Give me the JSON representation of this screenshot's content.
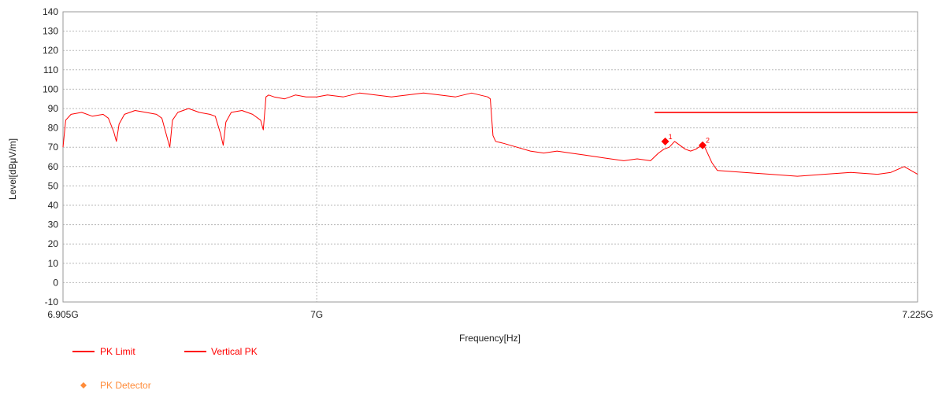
{
  "chart_data": {
    "type": "line",
    "xlabel": "Frequency[Hz]",
    "ylabel": "Level[dBμV/m]",
    "x_range_ghz": [
      6.905,
      7.225
    ],
    "x_tick_labels": [
      {
        "ghz": 6.905,
        "label": "6.905G"
      },
      {
        "ghz": 7.0,
        "label": "7G"
      },
      {
        "ghz": 7.225,
        "label": "7.225G"
      }
    ],
    "ylim": [
      -10,
      140
    ],
    "y_ticks": [
      -10,
      0,
      10,
      20,
      30,
      40,
      50,
      60,
      70,
      80,
      90,
      100,
      110,
      120,
      130,
      140
    ],
    "grid": true,
    "legend_position": "bottom-left",
    "colors": {
      "limit": "#ff0000",
      "trace": "#ff0000",
      "detector": "#ff0000",
      "detector_legend": "#ff8c3a",
      "grid": "#b8b8b8"
    },
    "series": [
      {
        "name": "PK Limit",
        "type": "line",
        "x_ghz": [
          7.1265,
          7.225
        ],
        "values": [
          88,
          88
        ]
      },
      {
        "name": "Vertical PK",
        "type": "line",
        "x_ghz": [
          6.905,
          6.906,
          6.908,
          6.912,
          6.916,
          6.92,
          6.922,
          6.924,
          6.925,
          6.926,
          6.928,
          6.932,
          6.936,
          6.94,
          6.942,
          6.944,
          6.945,
          6.946,
          6.948,
          6.952,
          6.956,
          6.96,
          6.962,
          6.964,
          6.965,
          6.966,
          6.968,
          6.972,
          6.976,
          6.979,
          6.98,
          6.981,
          6.982,
          6.984,
          6.988,
          6.992,
          6.996,
          7.0,
          7.004,
          7.01,
          7.016,
          7.022,
          7.028,
          7.034,
          7.04,
          7.046,
          7.052,
          7.058,
          7.064,
          7.065,
          7.066,
          7.067,
          7.07,
          7.075,
          7.08,
          7.085,
          7.09,
          7.095,
          7.1,
          7.105,
          7.11,
          7.115,
          7.12,
          7.125,
          7.128,
          7.13,
          7.132,
          7.134,
          7.136,
          7.138,
          7.14,
          7.142,
          7.143,
          7.145,
          7.148,
          7.15,
          7.16,
          7.17,
          7.18,
          7.19,
          7.2,
          7.21,
          7.215,
          7.22,
          7.225
        ],
        "values": [
          70,
          84,
          87,
          88,
          86,
          87,
          85,
          78,
          73,
          82,
          87,
          89,
          88,
          87,
          85,
          75,
          70,
          84,
          88,
          90,
          88,
          87,
          86,
          77,
          71,
          83,
          88,
          89,
          87,
          84,
          79,
          96,
          97,
          96,
          95,
          97,
          96,
          96,
          97,
          96,
          98,
          97,
          96,
          97,
          98,
          97,
          96,
          98,
          96,
          95,
          76,
          73,
          72,
          70,
          68,
          67,
          68,
          67,
          66,
          65,
          64,
          63,
          64,
          63,
          67,
          69,
          70,
          73,
          71,
          69,
          68,
          69,
          70,
          71,
          62,
          58,
          57,
          56,
          55,
          56,
          57,
          56,
          57,
          60,
          56
        ]
      }
    ],
    "markers": [
      {
        "id": "1",
        "x_ghz": 7.1305,
        "value": 73
      },
      {
        "id": "2",
        "x_ghz": 7.1445,
        "value": 71
      }
    ],
    "legend": [
      {
        "label": "PK Limit",
        "kind": "line"
      },
      {
        "label": "Vertical PK",
        "kind": "line"
      },
      {
        "label": "PK Detector",
        "kind": "diamond"
      }
    ]
  }
}
